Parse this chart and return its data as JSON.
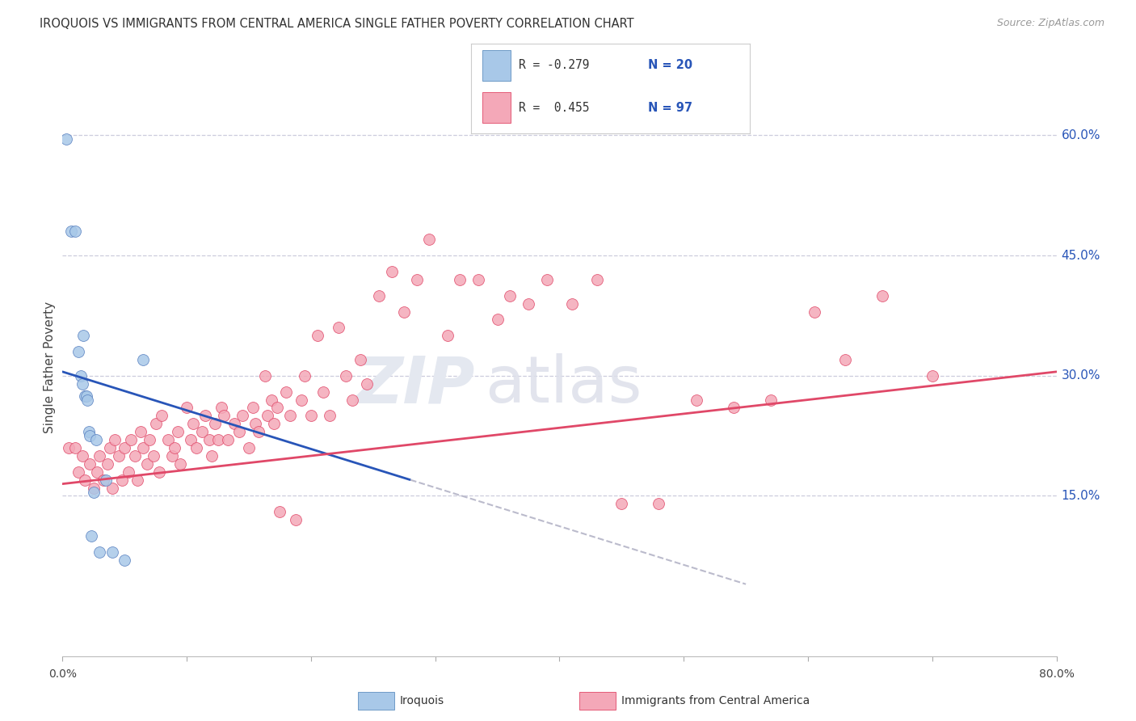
{
  "title": "IROQUOIS VS IMMIGRANTS FROM CENTRAL AMERICA SINGLE FATHER POVERTY CORRELATION CHART",
  "source": "Source: ZipAtlas.com",
  "ylabel": "Single Father Poverty",
  "ytick_vals": [
    0.15,
    0.3,
    0.45,
    0.6
  ],
  "ytick_labels": [
    "15.0%",
    "30.0%",
    "45.0%",
    "60.0%"
  ],
  "xrange": [
    0.0,
    0.8
  ],
  "yrange": [
    -0.05,
    0.67
  ],
  "color_blue": "#a8c8e8",
  "color_pink": "#f4a8b8",
  "line_blue": "#2855b8",
  "line_pink": "#e04868",
  "grid_color": "#ccccdd",
  "blue_line_start_y": 0.305,
  "blue_line_end_x": 0.28,
  "blue_line_end_y": 0.17,
  "pink_line_start_y": 0.165,
  "pink_line_end_y": 0.305,
  "iroquois_x": [
    0.003,
    0.007,
    0.01,
    0.013,
    0.015,
    0.016,
    0.017,
    0.018,
    0.019,
    0.02,
    0.021,
    0.022,
    0.023,
    0.025,
    0.027,
    0.03,
    0.035,
    0.04,
    0.05,
    0.065
  ],
  "iroquois_y": [
    0.595,
    0.48,
    0.48,
    0.33,
    0.3,
    0.29,
    0.35,
    0.275,
    0.275,
    0.27,
    0.23,
    0.225,
    0.1,
    0.155,
    0.22,
    0.08,
    0.17,
    0.08,
    0.07,
    0.32
  ],
  "immigrants_x": [
    0.005,
    0.01,
    0.013,
    0.016,
    0.018,
    0.022,
    0.025,
    0.028,
    0.03,
    0.033,
    0.036,
    0.038,
    0.04,
    0.042,
    0.045,
    0.048,
    0.05,
    0.053,
    0.055,
    0.058,
    0.06,
    0.063,
    0.065,
    0.068,
    0.07,
    0.073,
    0.075,
    0.078,
    0.08,
    0.085,
    0.088,
    0.09,
    0.093,
    0.095,
    0.1,
    0.103,
    0.105,
    0.108,
    0.112,
    0.115,
    0.118,
    0.12,
    0.123,
    0.125,
    0.128,
    0.13,
    0.133,
    0.138,
    0.142,
    0.145,
    0.15,
    0.153,
    0.155,
    0.158,
    0.163,
    0.165,
    0.168,
    0.17,
    0.173,
    0.175,
    0.18,
    0.183,
    0.188,
    0.192,
    0.195,
    0.2,
    0.205,
    0.21,
    0.215,
    0.222,
    0.228,
    0.233,
    0.24,
    0.245,
    0.255,
    0.265,
    0.275,
    0.285,
    0.295,
    0.31,
    0.32,
    0.335,
    0.35,
    0.36,
    0.375,
    0.39,
    0.41,
    0.43,
    0.45,
    0.48,
    0.51,
    0.54,
    0.57,
    0.605,
    0.63,
    0.66,
    0.7
  ],
  "immigrants_y": [
    0.21,
    0.21,
    0.18,
    0.2,
    0.17,
    0.19,
    0.16,
    0.18,
    0.2,
    0.17,
    0.19,
    0.21,
    0.16,
    0.22,
    0.2,
    0.17,
    0.21,
    0.18,
    0.22,
    0.2,
    0.17,
    0.23,
    0.21,
    0.19,
    0.22,
    0.2,
    0.24,
    0.18,
    0.25,
    0.22,
    0.2,
    0.21,
    0.23,
    0.19,
    0.26,
    0.22,
    0.24,
    0.21,
    0.23,
    0.25,
    0.22,
    0.2,
    0.24,
    0.22,
    0.26,
    0.25,
    0.22,
    0.24,
    0.23,
    0.25,
    0.21,
    0.26,
    0.24,
    0.23,
    0.3,
    0.25,
    0.27,
    0.24,
    0.26,
    0.13,
    0.28,
    0.25,
    0.12,
    0.27,
    0.3,
    0.25,
    0.35,
    0.28,
    0.25,
    0.36,
    0.3,
    0.27,
    0.32,
    0.29,
    0.4,
    0.43,
    0.38,
    0.42,
    0.47,
    0.35,
    0.42,
    0.42,
    0.37,
    0.4,
    0.39,
    0.42,
    0.39,
    0.42,
    0.14,
    0.14,
    0.27,
    0.26,
    0.27,
    0.38,
    0.32,
    0.4,
    0.3
  ]
}
